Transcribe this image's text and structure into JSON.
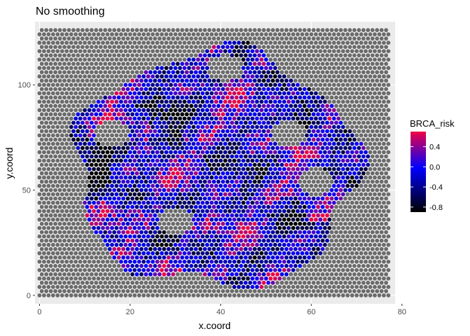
{
  "chart_data": {
    "type": "scatter",
    "title": "No smoothing",
    "xlabel": "x.coord",
    "ylabel": "y.coord",
    "xlim": [
      -1,
      78.5
    ],
    "ylim": [
      -4,
      130
    ],
    "x_ticks": [
      0,
      20,
      40,
      60,
      80
    ],
    "y_ticks": [
      0,
      50,
      100
    ],
    "grid": true,
    "legend": {
      "title": "BRCA_risk",
      "placement": "right",
      "ticks": [
        0.4,
        0.0,
        -0.4,
        -0.8
      ],
      "range": [
        -0.9,
        0.7
      ]
    },
    "grid_points": {
      "x_range": [
        0,
        77
      ],
      "y_range": [
        0,
        127
      ],
      "y_step": 2,
      "background_color": "#6b6b6b"
    },
    "tissue_region": {
      "center": [
        39,
        60
      ],
      "radius_x": 31,
      "radius_y": 56,
      "holes": [
        [
          16,
          77,
          4
        ],
        [
          55,
          77,
          4
        ],
        [
          61,
          54,
          4
        ],
        [
          30,
          35,
          4
        ],
        [
          41,
          108,
          4
        ]
      ]
    },
    "color_scale": {
      "low": "#000000",
      "mid": "#0000ff",
      "high": "#ee0044"
    }
  }
}
